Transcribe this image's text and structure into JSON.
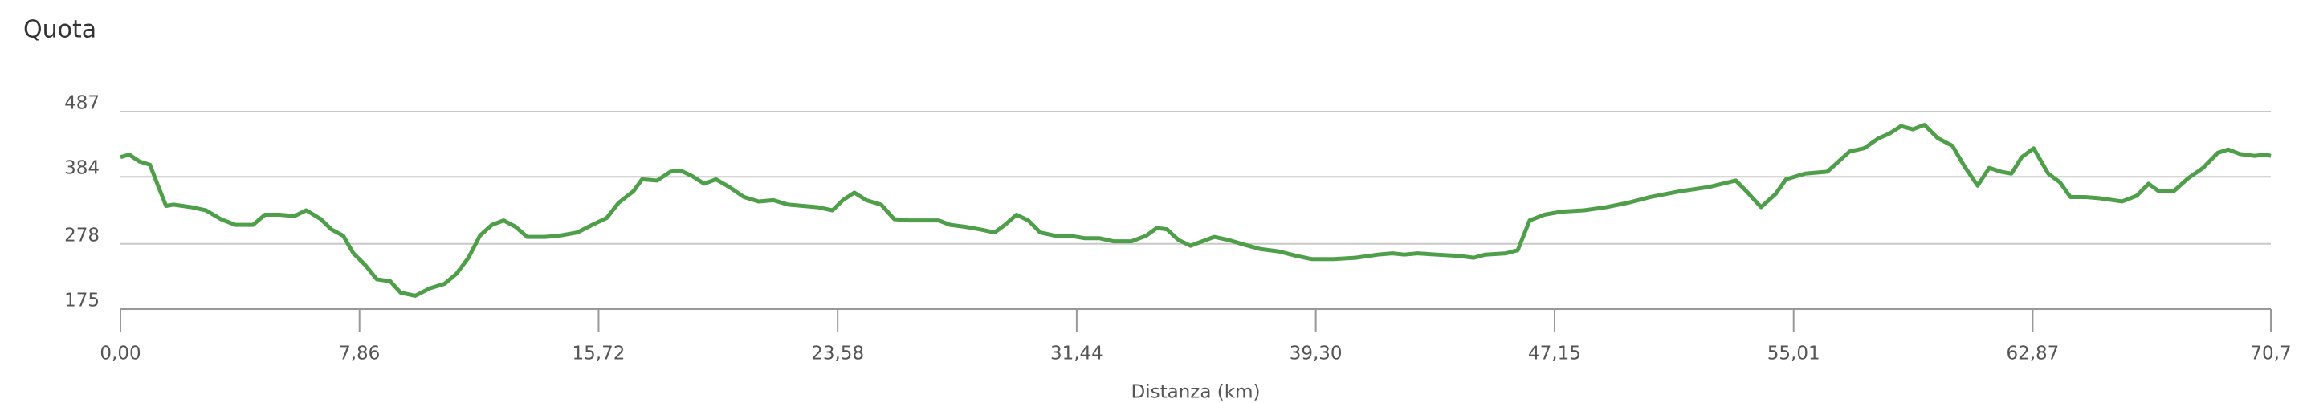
{
  "chart_data": {
    "type": "line",
    "title": "Quota",
    "x_label": "Distanza (km)",
    "xlim": [
      0,
      70.7
    ],
    "ylim": [
      175,
      487
    ],
    "xticks": [
      {
        "value": 0,
        "label": "0,00"
      },
      {
        "value": 7.86,
        "label": "7,86"
      },
      {
        "value": 15.72,
        "label": "15,72"
      },
      {
        "value": 23.58,
        "label": "23,58"
      },
      {
        "value": 31.44,
        "label": "31,44"
      },
      {
        "value": 39.3,
        "label": "39,30"
      },
      {
        "value": 47.15,
        "label": "47,15"
      },
      {
        "value": 55.01,
        "label": "55,01"
      },
      {
        "value": 62.87,
        "label": "62,87"
      },
      {
        "value": 70.7,
        "label": "70,7"
      }
    ],
    "yticks": [
      175,
      278,
      384,
      487
    ],
    "grid": true,
    "series": [
      {
        "color": "#4f9f4a",
        "x": [
          0,
          0.29,
          0.63,
          0.97,
          1.21,
          1.5,
          1.74,
          2.04,
          2.33,
          2.81,
          3.3,
          3.78,
          4.36,
          4.75,
          5.23,
          5.72,
          6.11,
          6.59,
          6.93,
          7.32,
          7.66,
          8.04,
          8.43,
          8.87,
          9.21,
          9.69,
          10.18,
          10.66,
          11.05,
          11.44,
          11.82,
          12.21,
          12.6,
          12.99,
          13.37,
          13.96,
          14.44,
          15.02,
          15.51,
          15.99,
          16.38,
          16.86,
          17.15,
          17.64,
          18.08,
          18.41,
          18.8,
          19.19,
          19.58,
          20.01,
          20.5,
          20.98,
          21.47,
          21.95,
          22.44,
          22.92,
          23.41,
          23.75,
          24.13,
          24.52,
          25.01,
          25.44,
          25.93,
          26.41,
          26.9,
          27.28,
          27.77,
          28.25,
          28.74,
          29.08,
          29.46,
          29.85,
          30.24,
          30.72,
          31.21,
          31.69,
          32.18,
          32.66,
          33.24,
          33.73,
          34.07,
          34.41,
          34.79,
          35.18,
          35.57,
          35.96,
          36.44,
          36.93,
          37.46,
          38.09,
          38.67,
          39.16,
          39.88,
          40.61,
          41.34,
          41.82,
          42.21,
          42.65,
          43.27,
          44.0,
          44.49,
          44.87,
          45.55,
          45.94,
          46.33,
          46.81,
          47.39,
          48.12,
          48.85,
          49.57,
          50.3,
          51.27,
          52.24,
          53.11,
          53.5,
          53.94,
          54.42,
          54.76,
          55.39,
          56.12,
          56.85,
          57.33,
          57.81,
          58.15,
          58.54,
          58.93,
          59.31,
          59.75,
          60.23,
          60.62,
          61.06,
          61.44,
          61.83,
          62.17,
          62.51,
          62.9,
          63.38,
          63.77,
          64.11,
          64.59,
          65.08,
          65.81,
          66.29,
          66.68,
          67.02,
          67.5,
          67.99,
          68.47,
          68.96,
          69.3,
          69.68,
          70.17,
          70.51,
          70.7
        ],
        "values": [
          415,
          419,
          408,
          403,
          373,
          338,
          340,
          338,
          336,
          331,
          317,
          308,
          308,
          324,
          324,
          322,
          331,
          317,
          301,
          291,
          263,
          245,
          222,
          219,
          201,
          196,
          208,
          215,
          231,
          256,
          291,
          308,
          315,
          305,
          289,
          289,
          291,
          296,
          308,
          319,
          343,
          361,
          380,
          378,
          392,
          394,
          385,
          373,
          380,
          368,
          352,
          345,
          347,
          340,
          338,
          336,
          331,
          347,
          359,
          347,
          340,
          317,
          315,
          315,
          315,
          308,
          305,
          301,
          296,
          308,
          324,
          315,
          296,
          291,
          291,
          287,
          287,
          282,
          282,
          291,
          303,
          301,
          284,
          275,
          282,
          289,
          284,
          277,
          270,
          266,
          259,
          254,
          254,
          256,
          261,
          263,
          261,
          263,
          261,
          259,
          256,
          261,
          263,
          268,
          315,
          324,
          329,
          331,
          336,
          343,
          352,
          361,
          368,
          378,
          359,
          336,
          357,
          380,
          389,
          392,
          424,
          429,
          445,
          452,
          464,
          459,
          466,
          445,
          433,
          401,
          370,
          398,
          392,
          389,
          415,
          429,
          389,
          375,
          352,
          352,
          350,
          345,
          354,
          373,
          361,
          361,
          382,
          398,
          422,
          427,
          420,
          417,
          419,
          417
        ]
      }
    ]
  }
}
